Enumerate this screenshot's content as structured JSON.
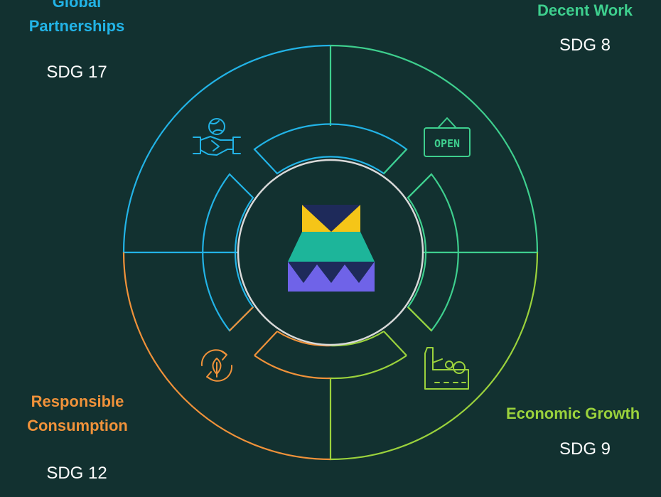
{
  "colors": {
    "background": "#123130",
    "global_partnerships": "#22b3e6",
    "decent_work": "#3ecf8e",
    "economic_growth": "#9bd23c",
    "responsible_consumption": "#f0923a",
    "center_ring": "#d9d9d9",
    "logo_navy": "#1e2a5a",
    "logo_yellow": "#f5c518",
    "logo_teal": "#1db59a",
    "logo_purple": "#6f63e8"
  },
  "quadrants": {
    "global_partnerships": {
      "title_line1": "Global",
      "title_line2": "Partnerships",
      "sdg": "SDG 17",
      "icon": "handshake-globe-icon"
    },
    "decent_work": {
      "title": "Decent Work",
      "sdg": "SDG 8",
      "icon": "open-sign-icon"
    },
    "economic_growth": {
      "title": "Economic Growth",
      "sdg": "SDG 9",
      "icon": "factory-gear-icon"
    },
    "responsible_consumption": {
      "title_line1": "Responsible",
      "title_line2": "Consumption",
      "sdg": "SDG 12",
      "icon": "recycle-leaf-icon"
    }
  },
  "center": {
    "icon": "logo-icon"
  }
}
